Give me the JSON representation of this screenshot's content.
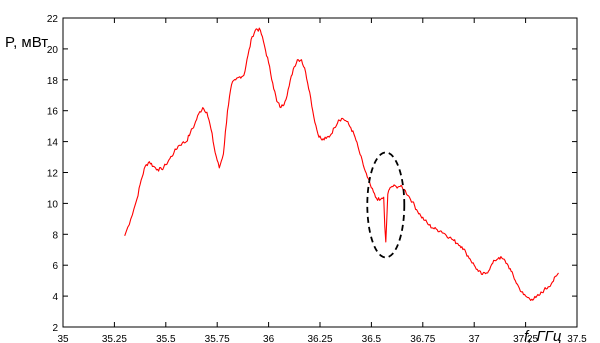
{
  "chart_data": {
    "type": "line",
    "xlabel": "f, ГГц",
    "ylabel": "P, мВт",
    "xlim": [
      35,
      37.5
    ],
    "ylim": [
      2,
      22
    ],
    "x_ticks": [
      35,
      35.25,
      35.5,
      35.75,
      36,
      36.25,
      36.5,
      36.75,
      37,
      37.25,
      37.5
    ],
    "y_ticks": [
      2,
      4,
      6,
      8,
      10,
      12,
      14,
      16,
      18,
      20,
      22
    ],
    "x_tick_labels": [
      "35",
      "35.25",
      "35.5",
      "35.75",
      "36",
      "36.25",
      "36.5",
      "36.75",
      "37",
      "37.25",
      "37.5"
    ],
    "y_tick_labels": [
      "2",
      "4",
      "6",
      "8",
      "10",
      "12",
      "14",
      "16",
      "18",
      "20",
      "22"
    ],
    "grid": false,
    "series_color": "#ff0000",
    "annotation": {
      "type": "dashed-ellipse",
      "center_x": 36.57,
      "center_y": 9.9,
      "rx_data": 0.09,
      "ry_data": 3.4
    },
    "series": [
      {
        "x": [
          35.3,
          35.33,
          35.36,
          35.38,
          35.4,
          35.42,
          35.44,
          35.46,
          35.48,
          35.5,
          35.52,
          35.54,
          35.56,
          35.58,
          35.6,
          35.62,
          35.64,
          35.66,
          35.68,
          35.7,
          35.72,
          35.74,
          35.76,
          35.78,
          35.8,
          35.82,
          35.84,
          35.86,
          35.88,
          35.9,
          35.92,
          35.94,
          35.96,
          35.98,
          36.0,
          36.02,
          36.04,
          36.06,
          36.08,
          36.1,
          36.12,
          36.14,
          36.16,
          36.18,
          36.2,
          36.22,
          36.24,
          36.26,
          36.28,
          36.3,
          36.32,
          36.34,
          36.36,
          36.38,
          36.4,
          36.42,
          36.44,
          36.46,
          36.48,
          36.5,
          36.52,
          36.54,
          36.56,
          36.565,
          36.57,
          36.575,
          36.58,
          36.59,
          36.6,
          36.62,
          36.64,
          36.66,
          36.68,
          36.7,
          36.72,
          36.74,
          36.76,
          36.78,
          36.8,
          36.82,
          36.84,
          36.86,
          36.88,
          36.9,
          36.92,
          36.94,
          36.96,
          36.98,
          37.0,
          37.02,
          37.04,
          37.06,
          37.08,
          37.1,
          37.12,
          37.14,
          37.16,
          37.18,
          37.2,
          37.22,
          37.24,
          37.26,
          37.28,
          37.3,
          37.32,
          37.34,
          37.36,
          37.38,
          37.4,
          37.41
        ],
        "y": [
          7.9,
          9.0,
          10.3,
          11.5,
          12.4,
          12.7,
          12.4,
          12.2,
          12.2,
          12.5,
          12.9,
          13.3,
          13.7,
          13.9,
          14.0,
          14.6,
          15.1,
          15.8,
          16.2,
          15.9,
          14.8,
          13.3,
          12.3,
          13.2,
          16.0,
          17.7,
          18.0,
          18.2,
          18.3,
          19.6,
          20.8,
          21.3,
          21.2,
          20.2,
          19.1,
          17.8,
          16.6,
          16.2,
          16.6,
          17.6,
          18.7,
          19.3,
          19.3,
          18.5,
          17.2,
          15.6,
          14.5,
          14.1,
          14.2,
          14.4,
          14.9,
          15.4,
          15.5,
          15.3,
          14.9,
          14.3,
          13.4,
          12.5,
          11.7,
          11.0,
          10.4,
          10.2,
          10.4,
          8.5,
          7.5,
          9.0,
          10.6,
          11.0,
          11.1,
          11.1,
          11.1,
          10.9,
          10.5,
          10.1,
          9.6,
          9.2,
          8.9,
          8.6,
          8.4,
          8.3,
          8.2,
          8.0,
          7.8,
          7.6,
          7.4,
          7.2,
          6.8,
          6.4,
          6.0,
          5.6,
          5.4,
          5.5,
          5.9,
          6.3,
          6.5,
          6.4,
          6.1,
          5.6,
          5.0,
          4.5,
          4.1,
          3.9,
          3.8,
          3.9,
          4.1,
          4.4,
          4.6,
          4.9,
          5.3,
          5.5
        ]
      }
    ]
  }
}
